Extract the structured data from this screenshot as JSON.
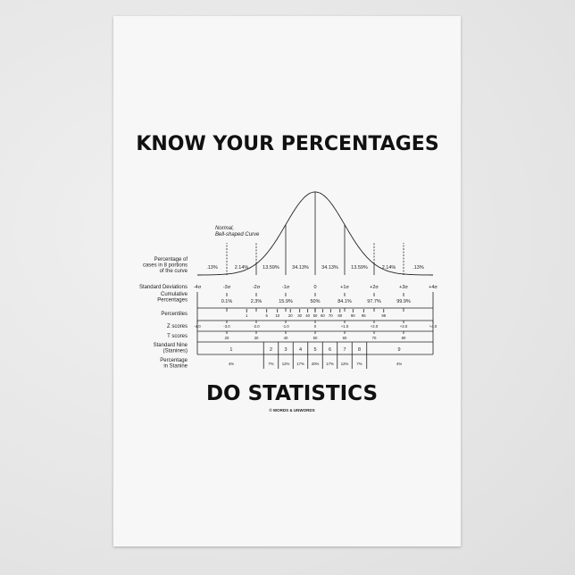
{
  "title_top": "KNOW YOUR PERCENTAGES",
  "title_bottom": "DO STATISTICS",
  "copyright": "© WORDS & UNWORDS",
  "curve_label": [
    "Normal,",
    "Bell-shaped Curve"
  ],
  "chart_data": {
    "type": "diagram",
    "row_labels": {
      "portions": [
        "Percentage of",
        "cases in 8 portions",
        "of the curve"
      ],
      "sd": "Standard Deviations",
      "cumulative": [
        "Cumulative",
        "Percentages"
      ],
      "percentiles": "Percentiles",
      "z": "Z scores",
      "t": "T scores",
      "stanine": [
        "Standard Nine",
        "(Stanines)"
      ],
      "stanine_pct": [
        "Percentage",
        "in Stanine"
      ]
    },
    "portions": [
      ".13%",
      "2.14%",
      "13.59%",
      "34.13%",
      "34.13%",
      "13.59%",
      "2.14%",
      ".13%"
    ],
    "sd_labels": [
      "-4σ",
      "-3σ",
      "-2σ",
      "-1σ",
      "0",
      "+1σ",
      "+2σ",
      "+3σ",
      "+4σ"
    ],
    "cumulative": [
      "0.1%",
      "2.3%",
      "15.9%",
      "50%",
      "84.1%",
      "97.7%",
      "99.9%"
    ],
    "percentiles": [
      1,
      5,
      10,
      20,
      30,
      40,
      50,
      60,
      70,
      80,
      90,
      95,
      99
    ],
    "z_scores": [
      "-4.0",
      "-3.0",
      "-2.0",
      "-1.0",
      "0",
      "+1.0",
      "+2.0",
      "+3.0",
      "+4.0"
    ],
    "t_scores": [
      "20",
      "30",
      "40",
      "50",
      "60",
      "70",
      "80"
    ],
    "stanines": [
      "1",
      "2",
      "3",
      "4",
      "5",
      "6",
      "7",
      "8",
      "9"
    ],
    "stanine_pct": [
      "4%",
      "7%",
      "12%",
      "17%",
      "20%",
      "17%",
      "12%",
      "7%",
      "4%"
    ]
  }
}
